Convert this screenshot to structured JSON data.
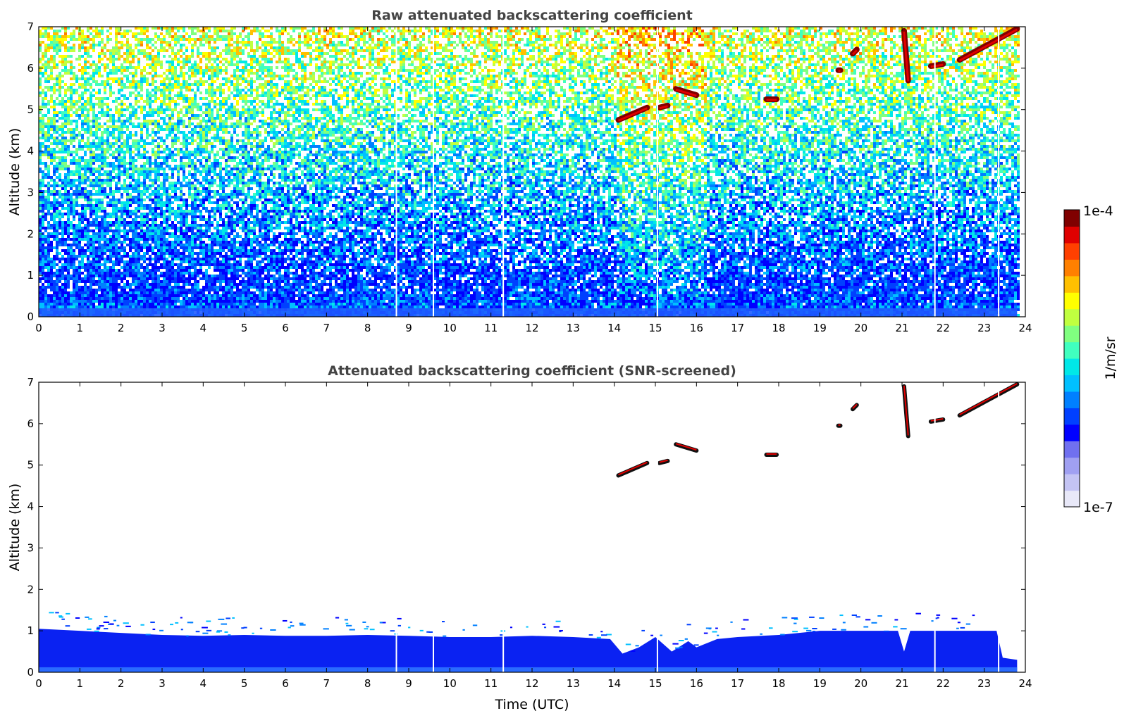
{
  "chart_data": [
    {
      "type": "heatmap",
      "title": "Raw attenuated backscattering coefficient",
      "ylabel": "Altitude (km)",
      "xlabel": "",
      "xlim": [
        0,
        24
      ],
      "ylim": [
        0,
        7
      ],
      "xticks": [
        0,
        1,
        2,
        3,
        4,
        5,
        6,
        7,
        8,
        9,
        10,
        11,
        12,
        13,
        14,
        15,
        16,
        17,
        18,
        19,
        20,
        21,
        22,
        23,
        24
      ],
      "yticks": [
        0,
        1,
        2,
        3,
        4,
        5,
        6,
        7
      ],
      "data_end_time": 23.8,
      "gaps_utc": [
        8.7,
        9.6,
        11.3,
        15.05,
        21.8,
        23.35
      ],
      "cloud_layers": [
        {
          "t_start": 14.1,
          "t_end": 14.8,
          "alt_start": 4.75,
          "alt_end": 5.05
        },
        {
          "t_start": 15.1,
          "t_end": 15.3,
          "alt_start": 5.05,
          "alt_end": 5.1
        },
        {
          "t_start": 15.5,
          "t_end": 16.0,
          "alt_start": 5.5,
          "alt_end": 5.35
        },
        {
          "t_start": 17.7,
          "t_end": 17.95,
          "alt_start": 5.25,
          "alt_end": 5.25
        },
        {
          "t_start": 19.45,
          "t_end": 19.5,
          "alt_start": 5.95,
          "alt_end": 5.95
        },
        {
          "t_start": 19.8,
          "t_end": 19.9,
          "alt_start": 6.35,
          "alt_end": 6.45
        },
        {
          "t_start": 21.05,
          "t_end": 21.15,
          "alt_start": 6.9,
          "alt_end": 5.7
        },
        {
          "t_start": 21.7,
          "t_end": 22.0,
          "alt_start": 6.05,
          "alt_end": 6.1
        },
        {
          "t_start": 22.4,
          "t_end": 23.8,
          "alt_start": 6.2,
          "alt_end": 6.95
        }
      ]
    },
    {
      "type": "heatmap",
      "title": "Attenuated backscattering coefficient (SNR-screened)",
      "ylabel": "Altitude (km)",
      "xlabel": "Time (UTC)",
      "xlim": [
        0,
        24
      ],
      "ylim": [
        0,
        7
      ],
      "xticks": [
        0,
        1,
        2,
        3,
        4,
        5,
        6,
        7,
        8,
        9,
        10,
        11,
        12,
        13,
        14,
        15,
        16,
        17,
        18,
        19,
        20,
        21,
        22,
        23,
        24
      ],
      "yticks": [
        0,
        1,
        2,
        3,
        4,
        5,
        6,
        7
      ],
      "boundary_layer_top_km": [
        [
          0,
          1.05
        ],
        [
          1,
          1.0
        ],
        [
          2,
          0.95
        ],
        [
          3,
          0.9
        ],
        [
          4,
          0.88
        ],
        [
          5,
          0.9
        ],
        [
          6,
          0.88
        ],
        [
          7,
          0.88
        ],
        [
          8,
          0.9
        ],
        [
          9,
          0.88
        ],
        [
          10,
          0.85
        ],
        [
          11,
          0.85
        ],
        [
          12,
          0.88
        ],
        [
          13,
          0.85
        ],
        [
          13.9,
          0.8
        ],
        [
          14.2,
          0.45
        ],
        [
          14.6,
          0.6
        ],
        [
          15.0,
          0.85
        ],
        [
          15.4,
          0.5
        ],
        [
          15.8,
          0.75
        ],
        [
          16.0,
          0.6
        ],
        [
          16.5,
          0.8
        ],
        [
          17.0,
          0.85
        ],
        [
          18,
          0.9
        ],
        [
          19,
          1.0
        ],
        [
          20,
          1.0
        ],
        [
          20.9,
          1.0
        ],
        [
          21.05,
          0.5
        ],
        [
          21.2,
          1.0
        ],
        [
          22,
          1.0
        ],
        [
          23,
          1.0
        ],
        [
          23.3,
          1.0
        ],
        [
          23.45,
          0.35
        ],
        [
          23.8,
          0.3
        ]
      ]
    }
  ],
  "colorbar": {
    "label": "1/m/sr",
    "max_label": "1e-4",
    "min_label": "1e-7",
    "colors": [
      "#e8e8f8",
      "#c4c4f4",
      "#a0a0f2",
      "#7070f0",
      "#0000ff",
      "#0040ff",
      "#0080ff",
      "#00c0ff",
      "#00e8e8",
      "#40ffbf",
      "#80ff80",
      "#c0ff40",
      "#ffff00",
      "#ffc000",
      "#ff8000",
      "#ff4000",
      "#e00000",
      "#800000"
    ]
  }
}
